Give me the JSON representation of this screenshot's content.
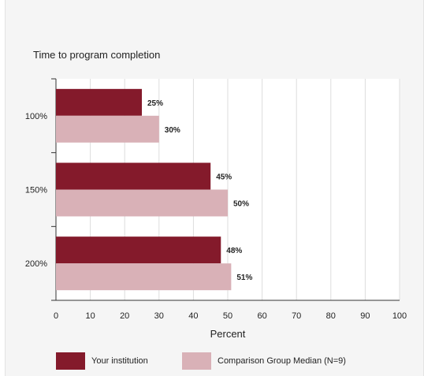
{
  "chart_data": {
    "type": "bar",
    "orientation": "horizontal",
    "title": "Time to program completion",
    "xlabel": "Percent",
    "ylabel": "",
    "categories": [
      "100%",
      "150%",
      "200%"
    ],
    "series": [
      {
        "name": "Your institution",
        "values": [
          25,
          45,
          48
        ],
        "labels": [
          "25%",
          "45%",
          "48%"
        ],
        "color": "#841a2b"
      },
      {
        "name": "Comparison Group Median (N=9)",
        "values": [
          30,
          50,
          51
        ],
        "labels": [
          "30%",
          "50%",
          "51%"
        ],
        "color": "#d9b1b7"
      }
    ],
    "xlim": [
      0,
      100
    ],
    "xticks": [
      "0",
      "10",
      "20",
      "30",
      "40",
      "50",
      "60",
      "70",
      "80",
      "90",
      "100"
    ],
    "grid": true,
    "legend_position": "bottom"
  },
  "colors": {
    "header_bar": "#7a1e2b",
    "panel_background": "#f5f5f5",
    "plot_background": "#ffffff",
    "gridline": "#dddddd"
  }
}
